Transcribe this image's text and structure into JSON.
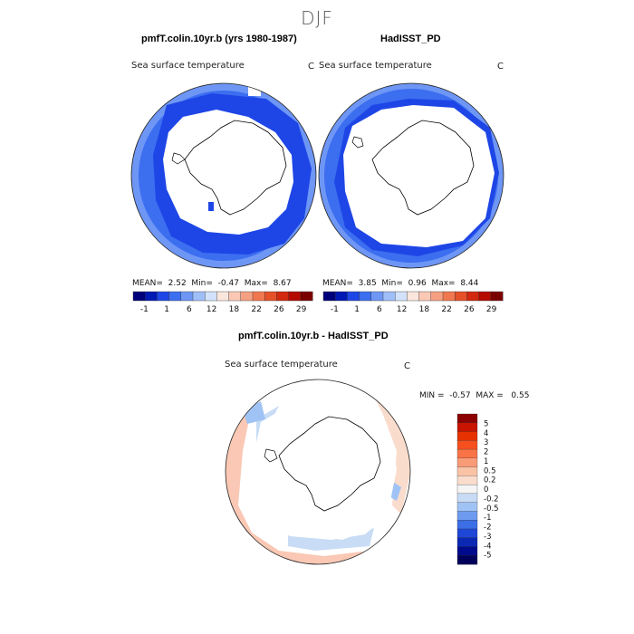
{
  "season_title": "DJF",
  "panels": [
    {
      "title": "pmfT.colin.10yr.b (yrs 1980-1987)",
      "subtitle": "Sea surface temperature",
      "unit": "C",
      "stats": {
        "mean_label": "MEAN=",
        "mean": "2.52",
        "min_label": "Min=",
        "min": "-0.47",
        "max_label": "Max=",
        "max": "8.67"
      }
    },
    {
      "title": "HadISST_PD",
      "subtitle": "Sea surface temperature",
      "unit": "C",
      "stats": {
        "mean_label": "MEAN=",
        "mean": "3.85",
        "min_label": "Min=",
        "min": "0.96",
        "max_label": "Max=",
        "max": "8.44"
      }
    },
    {
      "title": "pmfT.colin.10yr.b - HadISST_PD",
      "subtitle": "Sea surface temperature",
      "unit": "C",
      "stats": {
        "min_label": "MIN =",
        "min": "-0.57",
        "max_label": "MAX =",
        "max": "0.55"
      }
    }
  ],
  "abs_colorbar": {
    "labels": [
      "-1",
      "1",
      "6",
      "12",
      "18",
      "22",
      "26",
      "29"
    ],
    "colors": [
      "#00007a",
      "#0019b4",
      "#1e46e6",
      "#3c6ef0",
      "#6e96f5",
      "#a0bef8",
      "#d2e2fb",
      "#fae6dc",
      "#fac8b4",
      "#f5a082",
      "#f07850",
      "#e65028",
      "#d22810",
      "#b40a00",
      "#7a0000"
    ]
  },
  "diff_colorbar": {
    "labels": [
      "5",
      "4",
      "3",
      "2",
      "1",
      "0.5",
      "0.2",
      "0",
      "-0.2",
      "-0.5",
      "-1",
      "-2",
      "-3",
      "-4",
      "-5"
    ],
    "colors": [
      "#8b0000",
      "#c81400",
      "#e63200",
      "#f5501e",
      "#fa7346",
      "#fa9b78",
      "#fac3a5",
      "#fadccd",
      "#f5f5f5",
      "#c8dcf5",
      "#a0c3f5",
      "#6e9bf0",
      "#3c6ee6",
      "#1e46d7",
      "#0a28b4",
      "#000a8c",
      "#00005a"
    ]
  },
  "colors": {
    "land": "#ffffff",
    "deep_blue": "#1e46e6",
    "mid_blue": "#3c6ef0",
    "light_blue": "#6e96f5",
    "pale_red": "#fac8b4"
  }
}
